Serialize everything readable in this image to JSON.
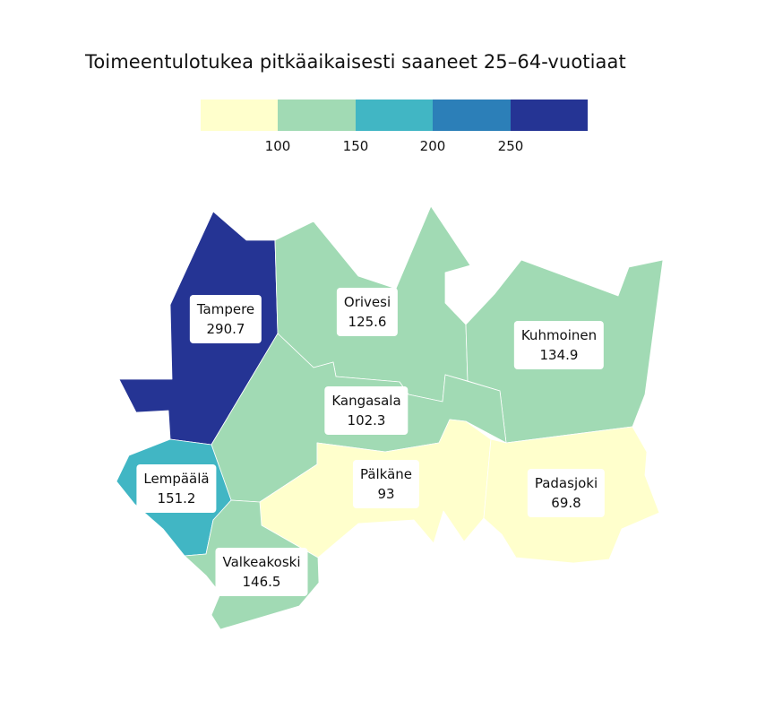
{
  "title": "Toimeentulotukea pitkäaikaisesti saaneet 25–64-vuotiaat",
  "legend": {
    "colors": [
      "#ffffcc",
      "#a1dab4",
      "#41b6c4",
      "#2c7fb8",
      "#253494"
    ],
    "ticks": [
      "100",
      "150",
      "200",
      "250"
    ]
  },
  "chart_data": {
    "type": "choropleth",
    "title": "Toimeentulotukea pitkäaikaisesti saaneet 25–64-vuotiaat",
    "bins": [
      [
        null,
        100
      ],
      [
        100,
        150
      ],
      [
        150,
        200
      ],
      [
        200,
        250
      ],
      [
        250,
        null
      ]
    ],
    "regions": [
      {
        "name": "Tampere",
        "value": "290.7"
      },
      {
        "name": "Orivesi",
        "value": "125.6"
      },
      {
        "name": "Kuhmoinen",
        "value": "134.9"
      },
      {
        "name": "Kangasala",
        "value": "102.3"
      },
      {
        "name": "Lempäälä",
        "value": "151.2"
      },
      {
        "name": "Pälkäne",
        "value": "93"
      },
      {
        "name": "Padasjoki",
        "value": "69.8"
      },
      {
        "name": "Valkeakoski",
        "value": "146.5"
      }
    ]
  }
}
